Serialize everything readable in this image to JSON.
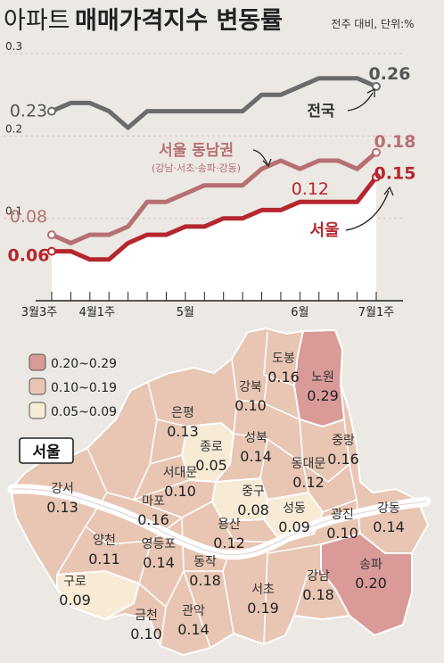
{
  "header": {
    "title_light": "아파트",
    "title_bold": "매매가격지수 변동률",
    "unit": "전주 대비, 단위:%"
  },
  "chart_data": {
    "type": "line",
    "x_ticks": [
      "3월3주",
      "4월1주",
      "5월",
      "6월",
      "7월1주"
    ],
    "y_ticks": [
      "0.3",
      "0.2",
      "0.1"
    ],
    "ylim": [
      0.0,
      0.3
    ],
    "series": [
      {
        "name": "전국",
        "color": "#6b6b6b",
        "values": [
          0.23,
          0.24,
          0.24,
          0.23,
          0.21,
          0.23,
          0.23,
          0.23,
          0.23,
          0.23,
          0.23,
          0.25,
          0.25,
          0.26,
          0.27,
          0.27,
          0.27,
          0.26
        ],
        "start_label": "0.23",
        "end_label": "0.26"
      },
      {
        "name": "서울 동남권",
        "sublabel": "(강남·서초·송파·강동)",
        "color": "#b67073",
        "values": [
          0.08,
          0.07,
          0.08,
          0.08,
          0.09,
          0.12,
          0.12,
          0.13,
          0.14,
          0.14,
          0.14,
          0.16,
          0.17,
          0.16,
          0.17,
          0.17,
          0.16,
          0.18
        ],
        "start_label": "0.08",
        "end_label": "0.18"
      },
      {
        "name": "서울",
        "color": "#b5262e",
        "values": [
          0.06,
          0.06,
          0.05,
          0.05,
          0.07,
          0.08,
          0.08,
          0.09,
          0.09,
          0.1,
          0.1,
          0.11,
          0.11,
          0.12,
          0.12,
          0.12,
          0.12,
          0.15
        ],
        "start_label": "0.06",
        "mid_label": "0.12",
        "end_label": "0.15"
      }
    ]
  },
  "legend": [
    {
      "label": "0.20~0.29",
      "color": "#d99a98"
    },
    {
      "label": "0.10~0.19",
      "color": "#e8c6b3"
    },
    {
      "label": "0.05~0.09",
      "color": "#f7ebd6"
    }
  ],
  "map": {
    "region_title": "서울",
    "districts": [
      {
        "name": "도봉",
        "value": "0.16"
      },
      {
        "name": "노원",
        "value": "0.29"
      },
      {
        "name": "강북",
        "value": "0.10"
      },
      {
        "name": "은평",
        "value": "0.13"
      },
      {
        "name": "종로",
        "value": "0.05"
      },
      {
        "name": "성북",
        "value": "0.14"
      },
      {
        "name": "중랑",
        "value": "0.16"
      },
      {
        "name": "서대문",
        "value": "0.10"
      },
      {
        "name": "동대문",
        "value": "0.12"
      },
      {
        "name": "강서",
        "value": "0.13"
      },
      {
        "name": "마포",
        "value": "0.16"
      },
      {
        "name": "중구",
        "value": "0.08"
      },
      {
        "name": "성동",
        "value": "0.09"
      },
      {
        "name": "광진",
        "value": "0.10"
      },
      {
        "name": "강동",
        "value": "0.14"
      },
      {
        "name": "양천",
        "value": "0.11"
      },
      {
        "name": "영등포",
        "value": "0.14"
      },
      {
        "name": "용산",
        "value": "0.12"
      },
      {
        "name": "송파",
        "value": "0.20"
      },
      {
        "name": "구로",
        "value": "0.09"
      },
      {
        "name": "동작",
        "value": "0.18"
      },
      {
        "name": "강남",
        "value": "0.18"
      },
      {
        "name": "서초",
        "value": "0.19"
      },
      {
        "name": "금천",
        "value": "0.10"
      },
      {
        "name": "관악",
        "value": "0.14"
      }
    ]
  }
}
